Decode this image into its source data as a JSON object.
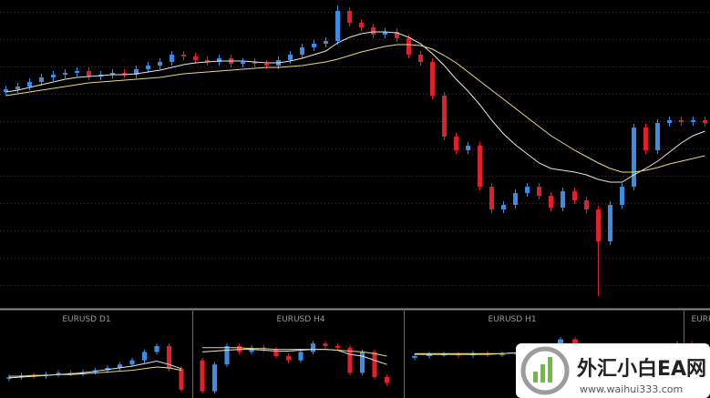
{
  "chart_data": [
    {
      "type": "candlestick",
      "grid": true,
      "ylim": [
        0,
        337
      ],
      "up_color": "#3a8ee6",
      "down_color": "#e3202a",
      "open": [
        236,
        239,
        242,
        247,
        252,
        255,
        257,
        259,
        253,
        255,
        257,
        255,
        261,
        265,
        269,
        277,
        275,
        271,
        269,
        273,
        267,
        269,
        267,
        265,
        271,
        277,
        285,
        289,
        292,
        325,
        312,
        307,
        299,
        302,
        295,
        277,
        269,
        232,
        187,
        172,
        177,
        132,
        107,
        112,
        125,
        132,
        122,
        109,
        127,
        117,
        107,
        72,
        112,
        132,
        197,
        172,
        202,
        205,
        203,
        205
      ],
      "high": [
        243,
        246,
        251,
        256,
        259,
        261,
        263,
        263,
        259,
        261,
        261,
        265,
        269,
        273,
        281,
        281,
        279,
        275,
        277,
        277,
        273,
        273,
        271,
        275,
        281,
        289,
        293,
        296,
        331,
        329,
        316,
        311,
        306,
        306,
        299,
        281,
        273,
        236,
        191,
        181,
        181,
        136,
        116,
        129,
        136,
        136,
        126,
        131,
        131,
        121,
        111,
        116,
        136,
        201,
        201,
        206,
        209,
        209,
        209,
        209
      ],
      "low": [
        232,
        235,
        238,
        243,
        248,
        251,
        253,
        249,
        249,
        251,
        251,
        251,
        257,
        261,
        265,
        271,
        267,
        265,
        265,
        263,
        263,
        263,
        261,
        261,
        267,
        273,
        281,
        285,
        288,
        308,
        303,
        295,
        295,
        291,
        273,
        265,
        228,
        183,
        168,
        168,
        128,
        103,
        103,
        108,
        121,
        118,
        105,
        105,
        113,
        103,
        12,
        68,
        108,
        128,
        168,
        168,
        198,
        199,
        199,
        198
      ],
      "close": [
        239,
        242,
        247,
        252,
        255,
        257,
        259,
        253,
        255,
        257,
        255,
        261,
        265,
        269,
        277,
        275,
        271,
        269,
        273,
        267,
        269,
        267,
        265,
        271,
        277,
        285,
        289,
        292,
        325,
        312,
        307,
        299,
        302,
        295,
        277,
        269,
        232,
        187,
        172,
        177,
        132,
        107,
        112,
        125,
        132,
        122,
        109,
        127,
        117,
        107,
        72,
        112,
        132,
        197,
        172,
        202,
        205,
        203,
        205,
        202
      ],
      "lines": [
        {
          "color": "#e6e6e6",
          "values": [
            236,
            238,
            241,
            244,
            247,
            250,
            252,
            253,
            254,
            255,
            255,
            256,
            258,
            260,
            263,
            266,
            268,
            269,
            270,
            270,
            270,
            269,
            268,
            268,
            270,
            273,
            277,
            281,
            290,
            296,
            300,
            302,
            302,
            301,
            296,
            289,
            278,
            265,
            250,
            237,
            222,
            205,
            190,
            178,
            168,
            158,
            152,
            150,
            148,
            145,
            140,
            137,
            137,
            145,
            152,
            160,
            170,
            180,
            188,
            193
          ]
        },
        {
          "color": "#e6dc78",
          "values": [
            232,
            234,
            236,
            238,
            240,
            242,
            244,
            246,
            247,
            248,
            249,
            250,
            251,
            252,
            254,
            256,
            257,
            258,
            259,
            260,
            261,
            262,
            263,
            263,
            264,
            265,
            267,
            269,
            272,
            276,
            280,
            283,
            286,
            288,
            288,
            287,
            283,
            276,
            268,
            258,
            248,
            238,
            228,
            218,
            208,
            198,
            188,
            180,
            172,
            165,
            158,
            152,
            148,
            148,
            150,
            153,
            157,
            160,
            163,
            166
          ]
        }
      ]
    },
    {
      "type": "candlestick",
      "title": "EURUSD D1",
      "ylim": [
        0,
        100
      ],
      "up_color": "#3a8ee6",
      "down_color": "#e3202a",
      "open": [
        23,
        25,
        27,
        26,
        28,
        30,
        29,
        31,
        33,
        36,
        40,
        45,
        55,
        62,
        35
      ],
      "high": [
        28,
        30,
        30,
        31,
        33,
        33,
        34,
        36,
        39,
        43,
        48,
        58,
        65,
        65,
        38
      ],
      "low": [
        20,
        22,
        23,
        23,
        25,
        26,
        26,
        28,
        30,
        33,
        37,
        42,
        52,
        32,
        7
      ],
      "close": [
        25,
        27,
        26,
        28,
        30,
        29,
        31,
        33,
        36,
        40,
        45,
        55,
        62,
        35,
        10
      ],
      "lines": [
        {
          "color": "#e6e6e6",
          "values": [
            24,
            25,
            26,
            27,
            28,
            29,
            30,
            32,
            34,
            36,
            38,
            41,
            44,
            40,
            35
          ]
        },
        {
          "color": "#e6dc78",
          "values": [
            26,
            26,
            27,
            27,
            28,
            28,
            29,
            30,
            31,
            32,
            33,
            35,
            37,
            36,
            33
          ]
        }
      ]
    },
    {
      "type": "candlestick",
      "title": "EURUSD H4",
      "ylim": [
        0,
        100
      ],
      "up_color": "#3a8ee6",
      "down_color": "#e3202a",
      "open": [
        45,
        8,
        40,
        62,
        55,
        60,
        58,
        50,
        45,
        55,
        65,
        62,
        60,
        30,
        55,
        25
      ],
      "high": [
        48,
        43,
        65,
        65,
        63,
        63,
        61,
        53,
        58,
        68,
        68,
        65,
        63,
        58,
        58,
        28
      ],
      "low": [
        5,
        5,
        37,
        52,
        52,
        55,
        47,
        42,
        42,
        52,
        59,
        57,
        27,
        27,
        22,
        15
      ],
      "close": [
        8,
        40,
        62,
        55,
        60,
        58,
        50,
        45,
        55,
        65,
        62,
        60,
        30,
        55,
        25,
        18
      ],
      "lines": [
        {
          "color": "#e6e6e6",
          "values": [
            55,
            56,
            57,
            58,
            58,
            57,
            56,
            56,
            57,
            58,
            58,
            57,
            52,
            50,
            45,
            40
          ]
        },
        {
          "color": "#e6dc78",
          "values": [
            60,
            60,
            60,
            60,
            59,
            59,
            58,
            58,
            58,
            58,
            58,
            57,
            56,
            55,
            53,
            50
          ]
        }
      ]
    },
    {
      "type": "candlestick",
      "title": "EURUSD H1",
      "ylim": [
        0,
        100
      ],
      "up_color": "#3a8ee6",
      "down_color": "#e3202a",
      "open": [
        48,
        50,
        52,
        52,
        51,
        53,
        52,
        52,
        53,
        55,
        60,
        70,
        55,
        40,
        20,
        5,
        15,
        30,
        60,
        65
      ],
      "high": [
        53,
        55,
        55,
        55,
        56,
        56,
        55,
        56,
        58,
        63,
        73,
        73,
        58,
        43,
        23,
        18,
        33,
        63,
        68,
        68
      ],
      "low": [
        45,
        47,
        49,
        48,
        48,
        49,
        49,
        49,
        50,
        52,
        57,
        52,
        37,
        17,
        2,
        2,
        12,
        27,
        57,
        47
      ],
      "close": [
        50,
        52,
        52,
        51,
        53,
        52,
        52,
        53,
        55,
        60,
        70,
        55,
        40,
        20,
        5,
        15,
        30,
        60,
        65,
        50
      ],
      "lines": [
        {
          "color": "#e6e6e6",
          "values": [
            52,
            52,
            52,
            52,
            52,
            52,
            53,
            54,
            55,
            56,
            57,
            55,
            50,
            42,
            35,
            30,
            32,
            40,
            48,
            50
          ]
        },
        {
          "color": "#e6dc78",
          "values": [
            53,
            53,
            53,
            53,
            53,
            53,
            53,
            54,
            54,
            55,
            56,
            56,
            54,
            50,
            46,
            42,
            42,
            45,
            50,
            52
          ]
        }
      ]
    },
    {
      "type": "candlestick",
      "title": "EURU"
    }
  ],
  "watermark": {
    "brand": "外汇小白EA网",
    "url": "www.waihui333.com"
  }
}
